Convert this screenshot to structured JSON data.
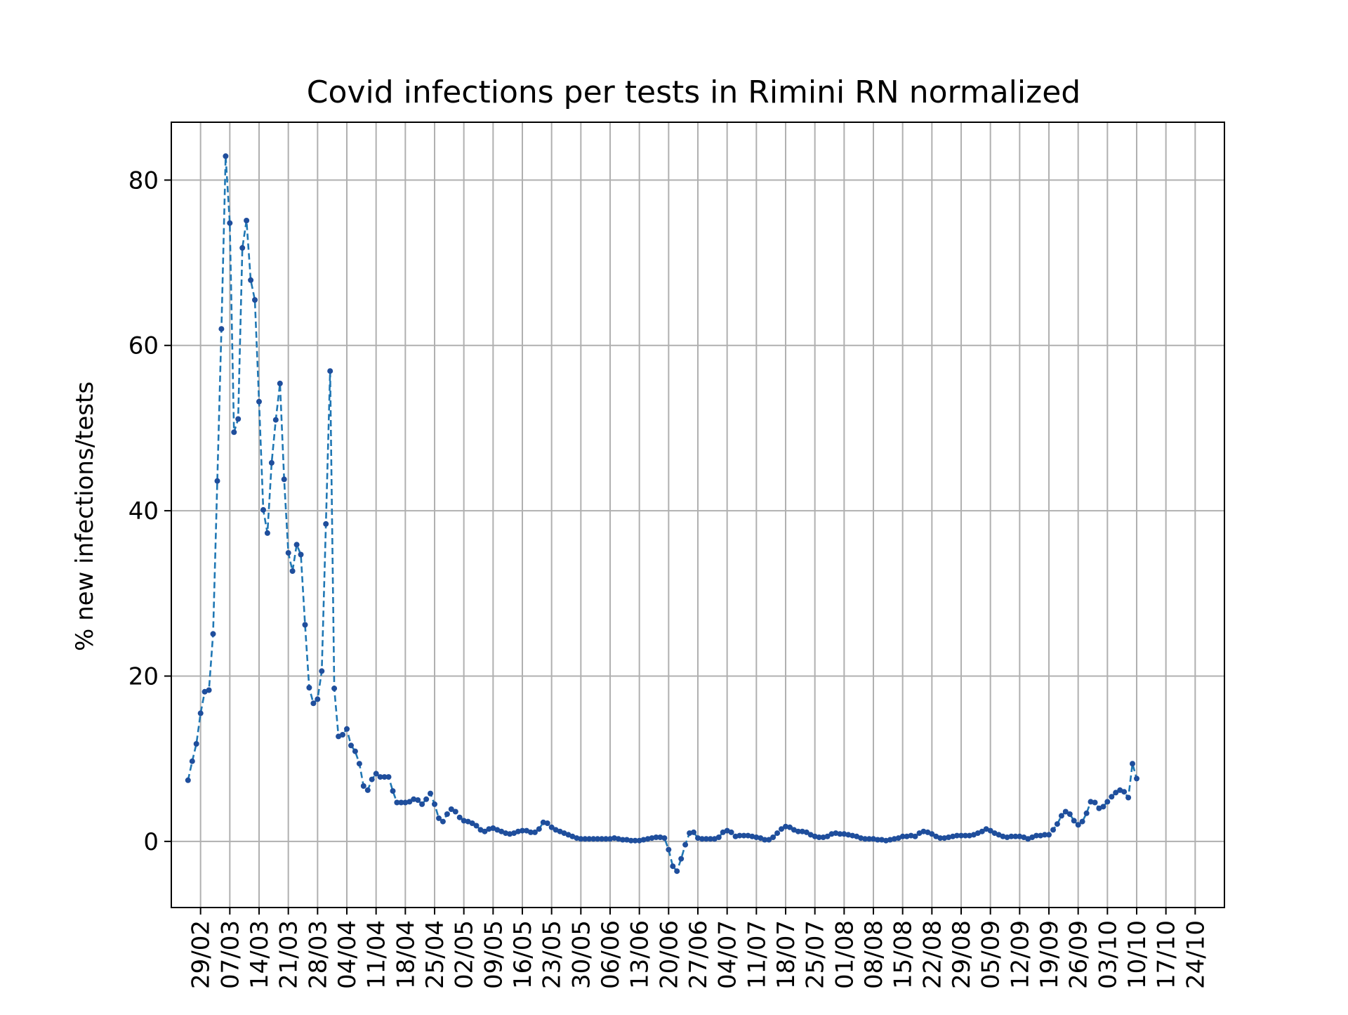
{
  "chart_data": {
    "type": "line",
    "title": "Covid infections per tests in Rimini RN normalized",
    "xlabel": "",
    "ylabel": "% new infections/tests",
    "x_start": "2020-02-26",
    "x_end": "2020-10-24",
    "xlim": [
      "2020-02-22",
      "2020-10-31"
    ],
    "ylim": [
      -8,
      87
    ],
    "grid": true,
    "line_style": "dashed",
    "marker": "dot",
    "line_color": "#1f77b4",
    "marker_color": "#1f4e9c",
    "x_tick_labels": [
      "29/02",
      "07/03",
      "14/03",
      "21/03",
      "28/03",
      "04/04",
      "11/04",
      "18/04",
      "25/04",
      "02/05",
      "09/05",
      "16/05",
      "23/05",
      "30/05",
      "06/06",
      "13/06",
      "20/06",
      "27/06",
      "04/07",
      "11/07",
      "18/07",
      "25/07",
      "01/08",
      "08/08",
      "15/08",
      "22/08",
      "29/08",
      "05/09",
      "12/09",
      "19/09",
      "26/09",
      "03/10",
      "10/10",
      "17/10",
      "24/10"
    ],
    "x_tick_values": [
      "2020-02-29",
      "2020-03-07",
      "2020-03-14",
      "2020-03-21",
      "2020-03-28",
      "2020-04-04",
      "2020-04-11",
      "2020-04-18",
      "2020-04-25",
      "2020-05-02",
      "2020-05-09",
      "2020-05-16",
      "2020-05-23",
      "2020-05-30",
      "2020-06-06",
      "2020-06-13",
      "2020-06-20",
      "2020-06-27",
      "2020-07-04",
      "2020-07-11",
      "2020-07-18",
      "2020-07-25",
      "2020-08-01",
      "2020-08-08",
      "2020-08-15",
      "2020-08-22",
      "2020-08-29",
      "2020-09-05",
      "2020-09-12",
      "2020-09-19",
      "2020-09-26",
      "2020-10-03",
      "2020-10-10",
      "2020-10-17",
      "2020-10-24"
    ],
    "y_ticks": [
      0,
      20,
      40,
      60,
      80
    ],
    "y_tick_labels": [
      "0",
      "20",
      "40",
      "60",
      "80"
    ],
    "series": [
      {
        "name": "",
        "values": [
          7.4,
          9.7,
          11.8,
          15.5,
          18.1,
          18.3,
          25.1,
          43.6,
          62.0,
          82.9,
          74.8,
          49.5,
          51.1,
          71.8,
          75.1,
          67.9,
          65.5,
          53.2,
          40.1,
          37.3,
          45.8,
          51.0,
          55.4,
          43.8,
          34.9,
          32.7,
          35.9,
          34.7,
          26.2,
          18.6,
          16.7,
          17.2,
          20.6,
          38.4,
          56.9,
          18.5,
          12.7,
          12.9,
          13.6,
          11.6,
          10.9,
          9.4,
          6.7,
          6.2,
          7.5,
          8.2,
          7.8,
          7.8,
          7.8,
          6.1,
          4.7,
          4.7,
          4.7,
          4.8,
          5.1,
          5.0,
          4.5,
          5.1,
          5.8,
          4.5,
          2.8,
          2.4,
          3.3,
          3.9,
          3.6,
          2.9,
          2.5,
          2.4,
          2.2,
          1.9,
          1.4,
          1.2,
          1.5,
          1.6,
          1.4,
          1.2,
          1.0,
          0.9,
          1.0,
          1.2,
          1.3,
          1.3,
          1.1,
          1.1,
          1.5,
          2.3,
          2.2,
          1.7,
          1.4,
          1.2,
          1.0,
          0.8,
          0.6,
          0.4,
          0.3,
          0.3,
          0.3,
          0.3,
          0.3,
          0.3,
          0.3,
          0.3,
          0.4,
          0.3,
          0.2,
          0.2,
          0.1,
          0.1,
          0.1,
          0.2,
          0.3,
          0.4,
          0.5,
          0.5,
          0.4,
          -1.0,
          -3.0,
          -3.6,
          -2.1,
          -0.4,
          1.0,
          1.1,
          0.4,
          0.3,
          0.3,
          0.3,
          0.3,
          0.5,
          1.1,
          1.3,
          1.1,
          0.6,
          0.7,
          0.7,
          0.7,
          0.6,
          0.5,
          0.4,
          0.2,
          0.2,
          0.5,
          1.0,
          1.5,
          1.8,
          1.7,
          1.4,
          1.2,
          1.2,
          1.1,
          0.8,
          0.6,
          0.5,
          0.5,
          0.6,
          0.9,
          1.0,
          0.9,
          0.9,
          0.8,
          0.7,
          0.6,
          0.4,
          0.3,
          0.3,
          0.3,
          0.2,
          0.2,
          0.1,
          0.2,
          0.3,
          0.4,
          0.6,
          0.6,
          0.7,
          0.6,
          1.0,
          1.2,
          1.1,
          0.9,
          0.6,
          0.4,
          0.4,
          0.5,
          0.6,
          0.7,
          0.7,
          0.7,
          0.7,
          0.8,
          1.0,
          1.2,
          1.5,
          1.3,
          1.0,
          0.8,
          0.6,
          0.5,
          0.6,
          0.6,
          0.6,
          0.5,
          0.3,
          0.5,
          0.7,
          0.7,
          0.8,
          0.8,
          1.4,
          2.1,
          3.1,
          3.6,
          3.3,
          2.5,
          2.0,
          2.4,
          3.4,
          4.8,
          4.7,
          4.0,
          4.2,
          4.8,
          5.4,
          5.9,
          6.2,
          6.0,
          5.3,
          9.4,
          7.6
        ]
      }
    ]
  }
}
